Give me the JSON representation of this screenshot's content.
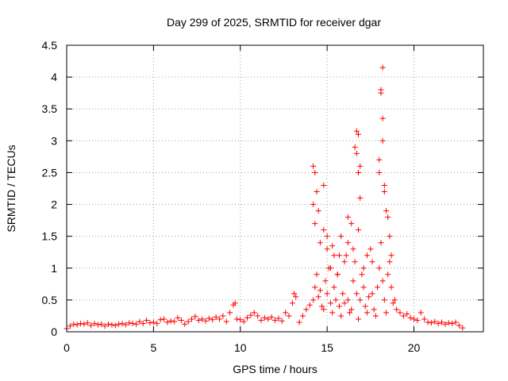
{
  "chart_data": {
    "type": "scatter",
    "title": "Day 299 of 2025, SRMTID for receiver dgar",
    "xlabel": "GPS time / hours",
    "ylabel": "SRMTID / TECUs",
    "xlim": [
      0,
      24
    ],
    "ylim": [
      0,
      4.5
    ],
    "xticks": [
      0,
      5,
      10,
      15,
      20
    ],
    "xtick_labels": [
      "0",
      "5",
      "10",
      "15",
      "20"
    ],
    "yticks": [
      0,
      0.5,
      1,
      1.5,
      2,
      2.5,
      3,
      3.5,
      4,
      4.5
    ],
    "ytick_labels": [
      "0",
      "0.5",
      "1",
      "1.5",
      "2",
      "2.5",
      "3",
      "3.5",
      "4",
      "4.5"
    ],
    "grid": true,
    "marker": "+",
    "color": "#ff0000",
    "series": [
      {
        "name": "SRMTID",
        "x": [
          0.0,
          0.2,
          0.4,
          0.6,
          0.8,
          1.0,
          1.2,
          1.4,
          1.6,
          1.8,
          2.0,
          2.2,
          2.4,
          2.6,
          2.8,
          3.0,
          3.2,
          3.4,
          3.6,
          3.8,
          4.0,
          4.2,
          4.4,
          4.6,
          4.8,
          5.0,
          5.2,
          5.4,
          5.6,
          5.8,
          6.0,
          6.2,
          6.4,
          6.6,
          6.8,
          7.0,
          7.2,
          7.4,
          7.6,
          7.8,
          8.0,
          8.2,
          8.4,
          8.6,
          8.8,
          9.0,
          9.2,
          9.4,
          9.6,
          9.7,
          9.8,
          10.0,
          10.2,
          10.4,
          10.6,
          10.8,
          11.0,
          11.2,
          11.4,
          11.6,
          11.8,
          12.0,
          12.2,
          12.4,
          12.6,
          12.8,
          13.0,
          13.1,
          13.2,
          13.4,
          13.6,
          13.8,
          14.0,
          14.2,
          14.3,
          14.4,
          14.5,
          14.6,
          14.7,
          14.8,
          14.9,
          15.0,
          15.1,
          15.2,
          15.3,
          15.4,
          15.5,
          15.6,
          15.7,
          15.8,
          15.9,
          16.0,
          16.1,
          16.2,
          16.3,
          16.4,
          16.5,
          16.6,
          16.7,
          16.8,
          16.9,
          17.0,
          17.1,
          17.2,
          17.3,
          17.4,
          17.5,
          17.6,
          17.7,
          17.8,
          17.9,
          18.0,
          18.1,
          18.2,
          18.3,
          18.4,
          18.5,
          18.6,
          18.7,
          18.8,
          18.9,
          19.0,
          19.2,
          19.4,
          19.6,
          19.8,
          20.0,
          20.2,
          20.4,
          20.6,
          20.8,
          21.0,
          21.2,
          21.4,
          21.6,
          21.8,
          22.0,
          22.2,
          22.4,
          22.6,
          22.8,
          14.2,
          14.3,
          14.4,
          14.5,
          14.2,
          14.3,
          14.6,
          14.8,
          15.0,
          15.2,
          15.4,
          15.6,
          15.8,
          16.0,
          16.2,
          16.4,
          16.6,
          16.7,
          16.8,
          16.9,
          16.7,
          16.8,
          18.0,
          18.1,
          18.2,
          18.3,
          18.1,
          18.2,
          18.0,
          18.2,
          18.3,
          18.4,
          16.8,
          16.9,
          14.8,
          15.0,
          15.3,
          15.7,
          16.2,
          16.5,
          17.1,
          17.3,
          17.6,
          18.5,
          18.6,
          18.7
        ],
        "y": [
          0.05,
          0.09,
          0.12,
          0.11,
          0.13,
          0.12,
          0.14,
          0.1,
          0.13,
          0.11,
          0.12,
          0.09,
          0.12,
          0.11,
          0.1,
          0.12,
          0.13,
          0.11,
          0.14,
          0.13,
          0.12,
          0.16,
          0.13,
          0.18,
          0.14,
          0.15,
          0.13,
          0.19,
          0.2,
          0.15,
          0.17,
          0.16,
          0.22,
          0.18,
          0.12,
          0.16,
          0.2,
          0.24,
          0.18,
          0.2,
          0.17,
          0.21,
          0.19,
          0.23,
          0.2,
          0.25,
          0.16,
          0.3,
          0.42,
          0.45,
          0.2,
          0.19,
          0.16,
          0.22,
          0.26,
          0.3,
          0.25,
          0.18,
          0.22,
          0.2,
          0.23,
          0.18,
          0.21,
          0.17,
          0.3,
          0.25,
          0.45,
          0.6,
          0.55,
          0.15,
          0.25,
          0.35,
          0.42,
          0.5,
          0.7,
          0.9,
          0.55,
          0.65,
          0.4,
          0.35,
          0.8,
          0.6,
          1.0,
          0.45,
          0.3,
          0.7,
          0.5,
          0.9,
          0.4,
          0.25,
          0.6,
          0.45,
          1.2,
          0.5,
          0.3,
          0.35,
          0.8,
          1.1,
          0.6,
          0.2,
          0.5,
          0.9,
          0.7,
          0.4,
          0.3,
          0.55,
          1.3,
          0.6,
          0.35,
          0.25,
          0.7,
          1.0,
          1.4,
          0.8,
          0.5,
          0.3,
          0.9,
          1.1,
          0.7,
          0.45,
          0.5,
          0.35,
          0.3,
          0.25,
          0.28,
          0.22,
          0.2,
          0.18,
          0.3,
          0.2,
          0.15,
          0.14,
          0.16,
          0.13,
          0.15,
          0.12,
          0.14,
          0.13,
          0.15,
          0.1,
          0.06,
          2.6,
          2.5,
          2.2,
          1.9,
          2.0,
          1.7,
          1.4,
          2.3,
          1.3,
          1.0,
          1.2,
          0.9,
          1.5,
          1.1,
          1.8,
          1.7,
          2.9,
          3.15,
          3.1,
          2.6,
          2.8,
          2.5,
          2.5,
          3.8,
          3.35,
          2.2,
          3.75,
          4.15,
          2.7,
          3.0,
          2.3,
          1.9,
          1.6,
          2.1,
          1.6,
          1.5,
          1.35,
          1.2,
          1.4,
          1.3,
          1.0,
          1.2,
          1.1,
          1.8,
          1.5,
          1.2
        ]
      }
    ]
  }
}
